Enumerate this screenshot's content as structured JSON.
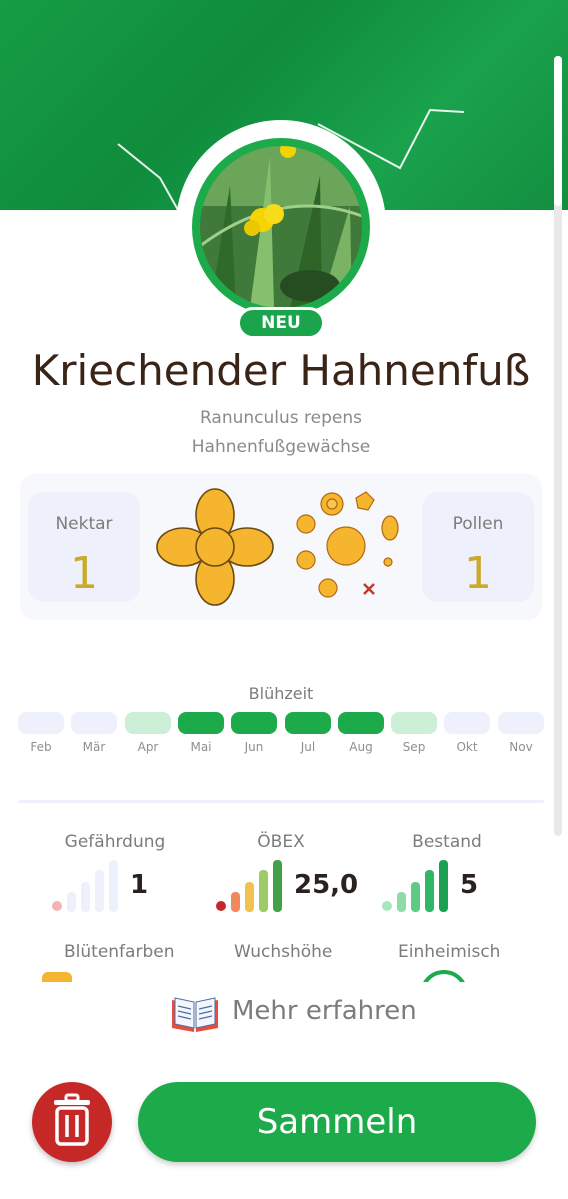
{
  "badge": "NEU",
  "plant": {
    "name": "Kriechender Hahnenfuß",
    "latin": "Ranunculus repens",
    "family": "Hahnenfußgewächse"
  },
  "nectar": {
    "label": "Nektar",
    "value": "1"
  },
  "pollen": {
    "label": "Pollen",
    "value": "1"
  },
  "bloom": {
    "label": "Blühzeit",
    "months": [
      {
        "label": "Feb",
        "level": "none"
      },
      {
        "label": "Mär",
        "level": "none"
      },
      {
        "label": "Apr",
        "level": "light"
      },
      {
        "label": "Mai",
        "level": "full"
      },
      {
        "label": "Jun",
        "level": "full"
      },
      {
        "label": "Jul",
        "level": "full"
      },
      {
        "label": "Aug",
        "level": "full"
      },
      {
        "label": "Sep",
        "level": "light"
      },
      {
        "label": "Okt",
        "level": "none"
      },
      {
        "label": "Nov",
        "level": "none"
      }
    ],
    "colors": {
      "none": "#eef1fb",
      "light": "#cdeed7",
      "full": "#1daa4b"
    }
  },
  "metrics": {
    "gefaehrdung": {
      "label": "Gefährdung",
      "value": "1"
    },
    "oebex": {
      "label": "ÖBEX",
      "value": "25,0"
    },
    "bestand": {
      "label": "Bestand",
      "value": "5"
    }
  },
  "more_rows": {
    "colors_label": "Blütenfarben",
    "height_label": "Wuchshöhe",
    "native_label": "Einheimisch"
  },
  "more_button": {
    "label": "Mehr erfahren"
  },
  "collect_button": {
    "label": "Sammeln"
  }
}
